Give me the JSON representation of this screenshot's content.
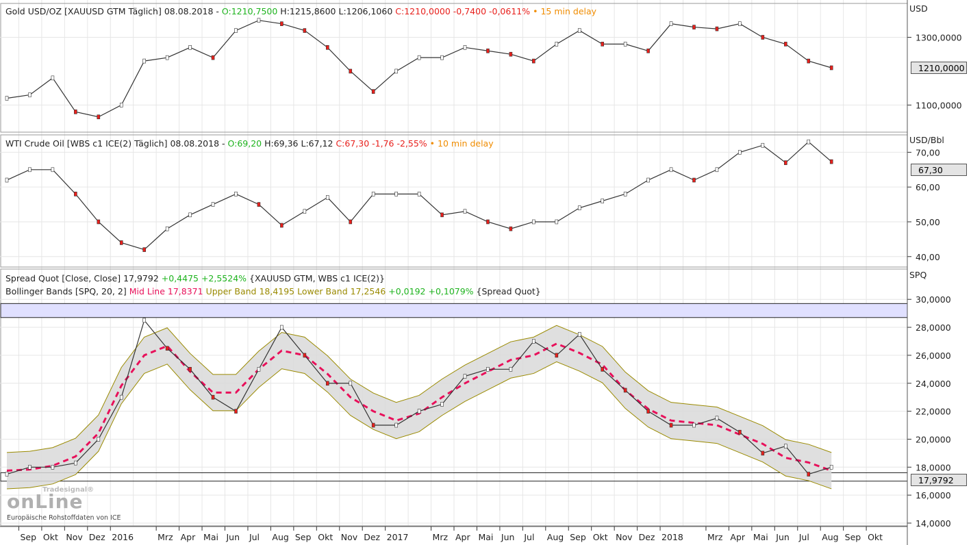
{
  "panels": {
    "gold": {
      "title": "Gold USD/OZ [XAUUSD GTM Täglich] 08.08.2018 -",
      "open": "O:1210,7500",
      "high": "H:1215,8600",
      "low": "L:1206,1060",
      "close": "C:1210,0000 -0,7400 -0,0611%",
      "delay": "• 15 min delay",
      "unit": "USD",
      "last_price": "1210,0000"
    },
    "oil": {
      "title": "WTI Crude Oil [WBS c1 ICE(2) Täglich] 08.08.2018 -",
      "open": "O:69,20",
      "high": "H:69,36",
      "low": "L:67,12",
      "close": "C:67,30 -1,76 -2,55%",
      "delay": "• 10 min delay",
      "unit": "USD/Bbl",
      "last_price": "67,30"
    },
    "spread": {
      "title": "Spread Quot [Close, Close]",
      "value": "17,9792",
      "change": "+0,4475 +2,5524%",
      "source": "{XAUUSD GTM, WBS c1 ICE(2)}",
      "bb_title": "Bollinger Bands [SPQ, 20, 2]",
      "bb_mid": "Mid Line 17,8371",
      "bb_bands": "Upper Band 18,4195 Lower Band 17,2546",
      "bb_change": "+0,0192 +0,1079%",
      "bb_source": "{Spread Quot}",
      "unit": "SPQ",
      "last_price": "17,9792"
    }
  },
  "footer": {
    "brand": "Tradesignal online",
    "source_note": "Europäische Rohstoffdaten von ICE"
  },
  "colors": {
    "up": "#1db31d",
    "down": "#e8201c",
    "delay": "#f08c00",
    "mid_line": "#e8105a",
    "band": "#9a8a00",
    "band_fill": "#d9d9d9",
    "zone_fill": "#e0e0ff"
  },
  "chart_data": [
    {
      "type": "line",
      "x": [
        "2015-08",
        "2015-09",
        "2015-10",
        "2015-11",
        "2015-12",
        "2016-01",
        "2016-02",
        "2016-03",
        "2016-04",
        "2016-05",
        "2016-06",
        "2016-07",
        "2016-08",
        "2016-09",
        "2016-10",
        "2016-11",
        "2016-12",
        "2017-01",
        "2017-02",
        "2017-03",
        "2017-04",
        "2017-05",
        "2017-06",
        "2017-07",
        "2017-08",
        "2017-09",
        "2017-10",
        "2017-11",
        "2017-12",
        "2018-01",
        "2018-02",
        "2018-03",
        "2018-04",
        "2018-05",
        "2018-06",
        "2018-07",
        "2018-08"
      ],
      "values": [
        1120,
        1130,
        1180,
        1080,
        1065,
        1100,
        1230,
        1240,
        1270,
        1240,
        1320,
        1350,
        1340,
        1320,
        1270,
        1200,
        1140,
        1200,
        1240,
        1240,
        1270,
        1260,
        1250,
        1230,
        1280,
        1320,
        1280,
        1280,
        1260,
        1340,
        1330,
        1325,
        1340,
        1300,
        1280,
        1230,
        1210
      ],
      "yticks": [
        "1100,0000",
        "1300,0000"
      ],
      "ylim": [
        1020,
        1400
      ]
    },
    {
      "type": "line",
      "values": [
        62,
        65,
        65,
        58,
        50,
        44,
        42,
        48,
        52,
        55,
        58,
        55,
        49,
        53,
        57,
        50,
        58,
        58,
        58,
        52,
        53,
        50,
        48,
        50,
        50,
        54,
        56,
        58,
        62,
        65,
        62,
        65,
        70,
        72,
        67,
        73,
        67.3
      ],
      "yticks": [
        "40,00",
        "50,00",
        "60,00",
        "70,00"
      ],
      "ylim": [
        37,
        75
      ]
    },
    {
      "type": "line",
      "values": [
        17.5,
        18,
        18,
        18.3,
        20,
        23,
        28.5,
        26.5,
        25,
        23,
        22,
        25,
        28,
        26,
        24,
        24,
        21,
        21,
        22,
        22.5,
        24.5,
        25,
        25,
        27,
        26,
        27.5,
        25,
        23.5,
        22,
        21,
        21,
        21.5,
        20.5,
        19,
        19.5,
        17.5,
        18
      ],
      "yticks": [
        "14,0000",
        "16,0000",
        "18,0000",
        "20,0000",
        "22,0000",
        "24,0000",
        "26,0000",
        "28,0000",
        "30,0000"
      ],
      "ylim": [
        14,
        30.5
      ],
      "horizontal_zones": [
        [
          28.7,
          29.7
        ],
        [
          17.0,
          17.6
        ]
      ]
    }
  ],
  "xaxis": {
    "labels": [
      "Sep",
      "Okt",
      "Nov",
      "Dez",
      "2016",
      "Mrz",
      "Apr",
      "Mai",
      "Jun",
      "Jul",
      "Aug",
      "Sep",
      "Okt",
      "Nov",
      "Dez",
      "2017",
      "Mrz",
      "Apr",
      "Mai",
      "Jun",
      "Jul",
      "Aug",
      "Sep",
      "Okt",
      "Nov",
      "Dez",
      "2018",
      "Mrz",
      "Apr",
      "Mai",
      "Jun",
      "Jul",
      "Aug",
      "Sep",
      "Okt"
    ],
    "label_months": [
      "2015-09",
      "2015-10",
      "2015-11",
      "2015-12",
      "2016-01",
      "2016-03",
      "2016-04",
      "2016-05",
      "2016-06",
      "2016-07",
      "2016-08",
      "2016-09",
      "2016-10",
      "2016-11",
      "2016-12",
      "2017-01",
      "2017-03",
      "2017-04",
      "2017-05",
      "2017-06",
      "2017-07",
      "2017-08",
      "2017-09",
      "2017-10",
      "2017-11",
      "2017-12",
      "2018-01",
      "2018-03",
      "2018-04",
      "2018-05",
      "2018-06",
      "2018-07",
      "2018-08",
      "2018-09",
      "2018-10"
    ]
  }
}
